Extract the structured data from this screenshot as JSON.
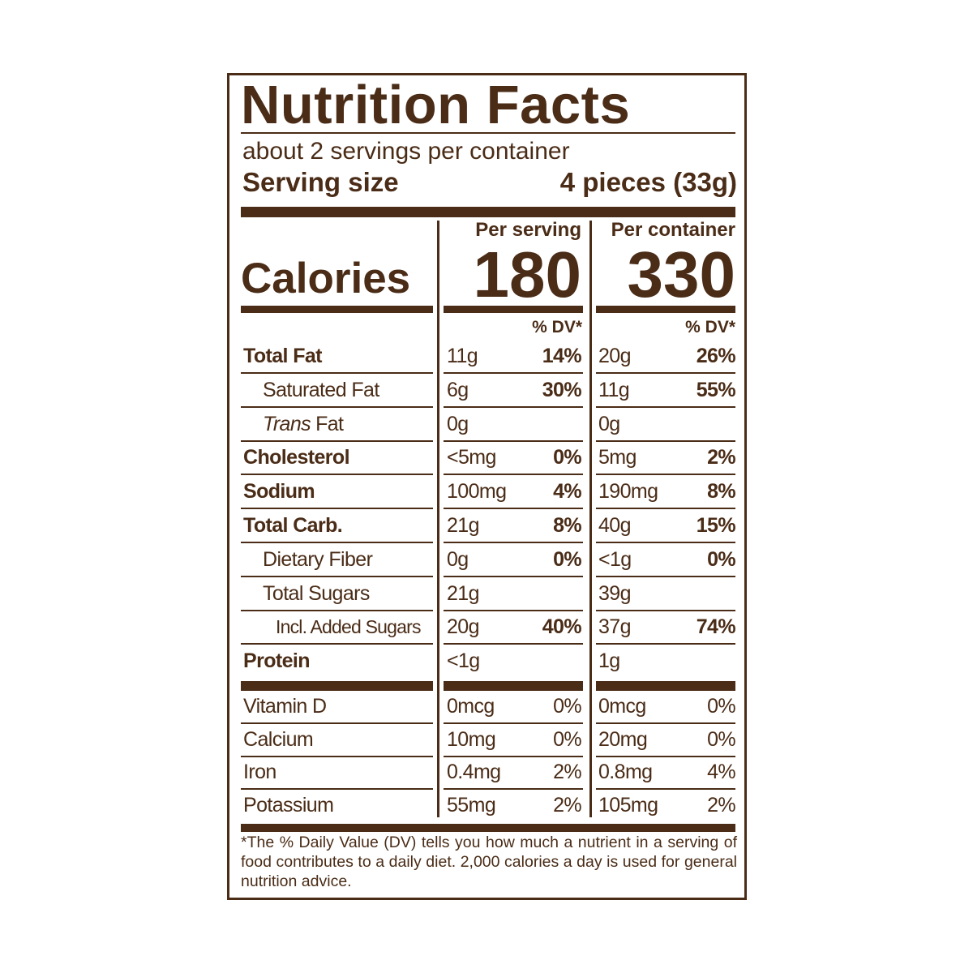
{
  "title": "Nutrition Facts",
  "servings": "about 2 servings per container",
  "serving_size": {
    "label": "Serving size",
    "value": "4 pieces (33g)"
  },
  "calories": {
    "label": "Calories",
    "per_serving": {
      "heading": "Per serving",
      "value": "180"
    },
    "per_container": {
      "heading": "Per container",
      "value": "330"
    }
  },
  "dv_header": {
    "per_serving": "% DV*",
    "per_container": "% DV*"
  },
  "nutrients": [
    {
      "name": "Total Fat",
      "per_serving": {
        "amount": "11g",
        "dv": "14%"
      },
      "per_container": {
        "amount": "20g",
        "dv": "26%"
      }
    },
    {
      "name": "Saturated Fat",
      "per_serving": {
        "amount": "6g",
        "dv": "30%"
      },
      "per_container": {
        "amount": "11g",
        "dv": "55%"
      }
    },
    {
      "name": [
        "Trans",
        "Fat"
      ],
      "per_serving": {
        "amount": "0g"
      },
      "per_container": {
        "amount": "0g"
      }
    },
    {
      "name": "Cholesterol",
      "per_serving": {
        "amount": "<5mg",
        "dv": "0%"
      },
      "per_container": {
        "amount": "5mg",
        "dv": "2%"
      }
    },
    {
      "name": "Sodium",
      "per_serving": {
        "amount": "100mg",
        "dv": "4%"
      },
      "per_container": {
        "amount": "190mg",
        "dv": "8%"
      }
    },
    {
      "name": "Total Carb.",
      "per_serving": {
        "amount": "21g",
        "dv": "8%"
      },
      "per_container": {
        "amount": "40g",
        "dv": "15%"
      }
    },
    {
      "name": "Dietary Fiber",
      "per_serving": {
        "amount": "0g",
        "dv": "0%"
      },
      "per_container": {
        "amount": "<1g",
        "dv": "0%"
      }
    },
    {
      "name": "Total Sugars",
      "per_serving": {
        "amount": "21g"
      },
      "per_container": {
        "amount": "39g"
      }
    },
    {
      "name": "Incl. Added Sugars",
      "per_serving": {
        "amount": "20g",
        "dv": "40%"
      },
      "per_container": {
        "amount": "37g",
        "dv": "74%"
      }
    },
    {
      "name": "Protein",
      "per_serving": {
        "amount": "<1g"
      },
      "per_container": {
        "amount": "1g"
      }
    }
  ],
  "vitamins": [
    {
      "name": "Vitamin D",
      "per_serving": {
        "amount": "0mcg",
        "dv": "0%"
      },
      "per_container": {
        "amount": "0mcg",
        "dv": "0%"
      }
    },
    {
      "name": "Calcium",
      "per_serving": {
        "amount": "10mg",
        "dv": "0%"
      },
      "per_container": {
        "amount": "20mg",
        "dv": "0%"
      }
    },
    {
      "name": "Iron",
      "per_serving": {
        "amount": "0.4mg",
        "dv": "2%"
      },
      "per_container": {
        "amount": "0.8mg",
        "dv": "4%"
      }
    },
    {
      "name": "Potassium",
      "per_serving": {
        "amount": "55mg",
        "dv": "2%"
      },
      "per_container": {
        "amount": "105mg",
        "dv": "2%"
      }
    }
  ],
  "footnote": "*The % Daily Value (DV) tells you how much a nutrient in a serving of food contributes to a daily diet. 2,000 calories a day is used for general nutrition advice."
}
